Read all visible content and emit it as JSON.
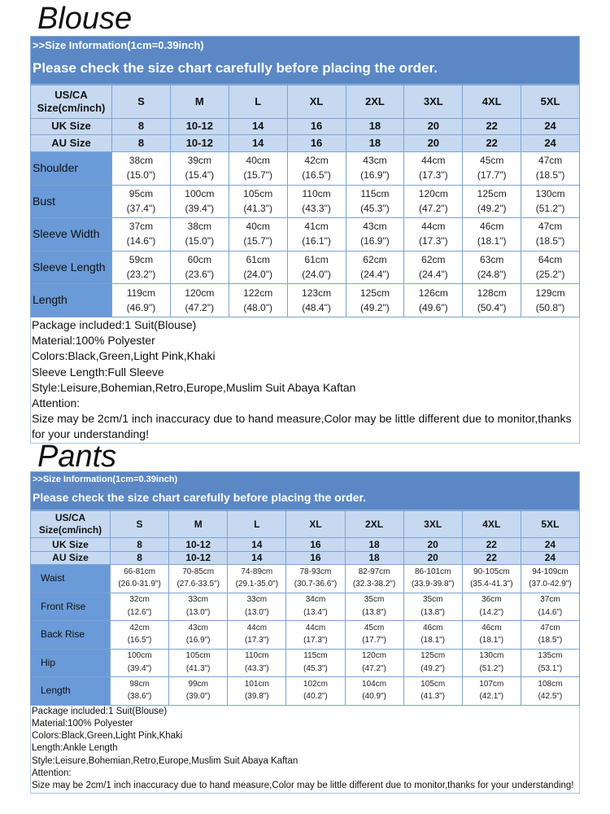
{
  "blouse": {
    "title": "Blouse",
    "info": ">>Size Information(1cm=0.39inch)",
    "notice": "Please check the size chart carefully before placing the order.",
    "header": [
      "US/CA Size(cm/inch)",
      "S",
      "M",
      "L",
      "XL",
      "2XL",
      "3XL",
      "4XL",
      "5XL"
    ],
    "uk": [
      "UK Size",
      "8",
      "10-12",
      "14",
      "16",
      "18",
      "20",
      "22",
      "24"
    ],
    "au": [
      "AU Size",
      "8",
      "10-12",
      "14",
      "16",
      "18",
      "20",
      "22",
      "24"
    ],
    "rows": [
      {
        "label": "Shoulder",
        "cm": [
          "38cm",
          "39cm",
          "40cm",
          "42cm",
          "43cm",
          "44cm",
          "45cm",
          "47cm"
        ],
        "inch": [
          "(15.0\")",
          "(15.4\")",
          "(15.7\")",
          "(16.5\")",
          "(16.9\")",
          "(17.3\")",
          "(17.7\")",
          "(18.5\")"
        ]
      },
      {
        "label": "Bust",
        "cm": [
          "95cm",
          "100cm",
          "105cm",
          "110cm",
          "115cm",
          "120cm",
          "125cm",
          "130cm"
        ],
        "inch": [
          "(37.4\")",
          "(39.4\")",
          "(41.3\")",
          "(43.3\")",
          "(45.3\")",
          "(47.2\")",
          "(49.2\")",
          "(51.2\")"
        ]
      },
      {
        "label": "Sleeve Width",
        "cm": [
          "37cm",
          "38cm",
          "40cm",
          "41cm",
          "43cm",
          "44cm",
          "46cm",
          "47cm"
        ],
        "inch": [
          "(14.6\")",
          "(15.0\")",
          "(15.7\")",
          "(16.1\")",
          "(16.9\")",
          "(17.3\")",
          "(18.1\")",
          "(18.5\")"
        ]
      },
      {
        "label": "Sleeve Length",
        "cm": [
          "59cm",
          "60cm",
          "61cm",
          "61cm",
          "62cm",
          "62cm",
          "63cm",
          "64cm"
        ],
        "inch": [
          "(23.2\")",
          "(23.6\")",
          "(24.0\")",
          "(24.0\")",
          "(24.4\")",
          "(24.4\")",
          "(24.8\")",
          "(25.2\")"
        ]
      },
      {
        "label": "Length",
        "cm": [
          "119cm",
          "120cm",
          "122cm",
          "123cm",
          "125cm",
          "126cm",
          "128cm",
          "129cm"
        ],
        "inch": [
          "(46.9\")",
          "(47.2\")",
          "(48.0\")",
          "(48.4\")",
          "(49.2\")",
          "(49.6\")",
          "(50.4\")",
          "(50.8\")"
        ]
      }
    ],
    "notes": [
      "Package included:1 Suit(Blouse)",
      "Material:100% Polyester",
      "Colors:Black,Green,Light Pink,Khaki",
      "Sleeve Length:Full Sleeve",
      "Style:Leisure,Bohemian,Retro,Europe,Muslim Suit Abaya Kaftan",
      "Attention:",
      "Size may be 2cm/1 inch inaccuracy due to hand measure,Color may be little different due to monitor,thanks for your understanding!"
    ]
  },
  "pants": {
    "title": "Pants",
    "info": ">>Size Information(1cm=0.39inch)",
    "notice": "Please check the size chart carefully before placing the order.",
    "header": [
      "US/CA Size(cm/inch)",
      "S",
      "M",
      "L",
      "XL",
      "2XL",
      "3XL",
      "4XL",
      "5XL"
    ],
    "uk": [
      "UK Size",
      "8",
      "10-12",
      "14",
      "16",
      "18",
      "20",
      "22",
      "24"
    ],
    "au": [
      "AU Size",
      "8",
      "10-12",
      "14",
      "16",
      "18",
      "20",
      "22",
      "24"
    ],
    "rows": [
      {
        "label": "Waist",
        "cm": [
          "66-81cm",
          "70-85cm",
          "74-89cm",
          "78-93cm",
          "82-97cm",
          "86-101cm",
          "90-105cm",
          "94-109cm"
        ],
        "inch": [
          "(26.0-31.9\")",
          "(27.6-33.5\")",
          "(29.1-35.0\")",
          "(30.7-36.6\")",
          "(32.3-38.2\")",
          "(33.9-39.8\")",
          "(35.4-41.3\")",
          "(37.0-42.9\")"
        ]
      },
      {
        "label": "Front Rise",
        "cm": [
          "32cm",
          "33cm",
          "33cm",
          "34cm",
          "35cm",
          "35cm",
          "36cm",
          "37cm"
        ],
        "inch": [
          "(12.6\")",
          "(13.0\")",
          "(13.0\")",
          "(13.4\")",
          "(13.8\")",
          "(13.8\")",
          "(14.2\")",
          "(14.6\")"
        ]
      },
      {
        "label": "Back Rise",
        "cm": [
          "42cm",
          "43cm",
          "44cm",
          "44cm",
          "45cm",
          "46cm",
          "46cm",
          "47cm"
        ],
        "inch": [
          "(16.5\")",
          "(16.9\")",
          "(17.3\")",
          "(17.3\")",
          "(17.7\")",
          "(18.1\")",
          "(18.1\")",
          "(18.5\")"
        ]
      },
      {
        "label": "Hip",
        "cm": [
          "100cm",
          "105cm",
          "110cm",
          "115cm",
          "120cm",
          "125cm",
          "130cm",
          "135cm"
        ],
        "inch": [
          "(39.4\")",
          "(41.3\")",
          "(43.3\")",
          "(45.3\")",
          "(47.2\")",
          "(49.2\")",
          "(51.2\")",
          "(53.1\")"
        ]
      },
      {
        "label": "Length",
        "cm": [
          "98cm",
          "99cm",
          "101cm",
          "102cm",
          "104cm",
          "105cm",
          "107cm",
          "108cm"
        ],
        "inch": [
          "(38.6\")",
          "(39.0\")",
          "(39.8\")",
          "(40.2\")",
          "(40.9\")",
          "(41.3\")",
          "(42.1\")",
          "(42.5\")"
        ]
      }
    ],
    "notes": [
      "Package included:1 Suit(Blouse)",
      "Material:100% Polyester",
      "Colors:Black,Green,Light Pink,Khaki",
      "Length:Ankle Length",
      "Style:Leisure,Bohemian,Retro,Europe,Muslim Suit Abaya Kaftan",
      "Attention:",
      "Size may be 2cm/1 inch inaccuracy due to hand measure,Color may be little different due to monitor,thanks for your understanding!"
    ]
  }
}
